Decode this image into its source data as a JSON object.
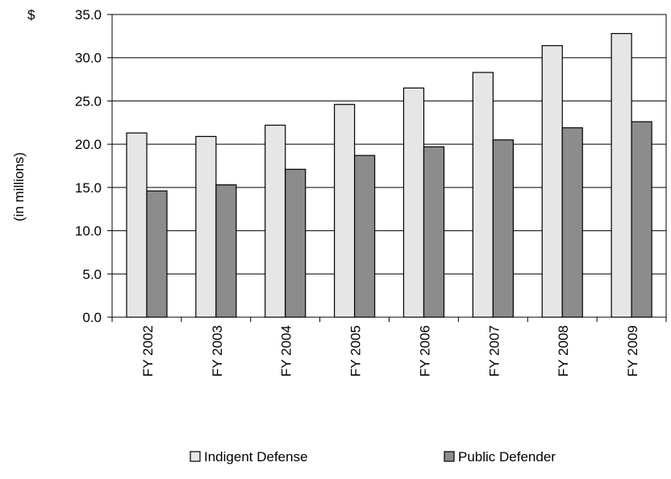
{
  "chart_data": {
    "type": "bar",
    "title": "",
    "xlabel": "",
    "ylabel": "(in millions)",
    "y_prefix": "$",
    "ylim": [
      0,
      35
    ],
    "y_ticks": [
      "0.0",
      "5.0",
      "10.0",
      "15.0",
      "20.0",
      "25.0",
      "30.0",
      "35.0"
    ],
    "grid": true,
    "legend_position": "bottom",
    "categories": [
      "FY 2002",
      "FY 2003",
      "FY 2004",
      "FY 2005",
      "FY 2006",
      "FY 2007",
      "FY 2008",
      "FY 2009"
    ],
    "series": [
      {
        "name": "Indigent Defense",
        "color": "#e6e6e6",
        "values": [
          21.3,
          20.9,
          22.2,
          24.6,
          26.5,
          28.3,
          31.4,
          32.8
        ]
      },
      {
        "name": "Public Defender",
        "color": "#8c8c8c",
        "values": [
          14.6,
          15.3,
          17.1,
          18.7,
          19.7,
          20.5,
          21.9,
          22.6
        ]
      }
    ]
  }
}
